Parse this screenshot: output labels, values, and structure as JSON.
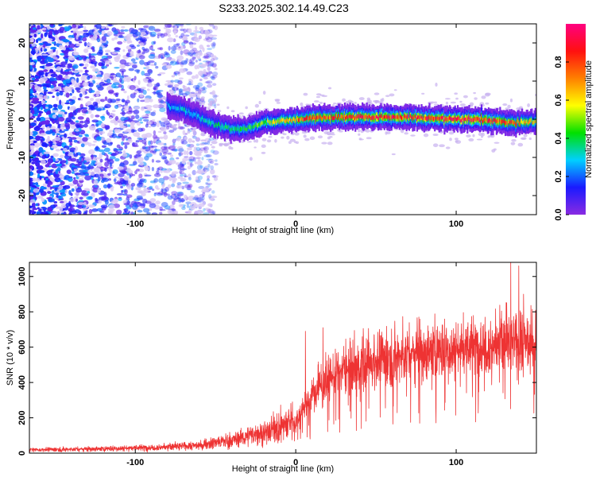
{
  "title": "S233.2025.302.14.49.C23",
  "chart_data": [
    {
      "type": "heatmap",
      "subtype": "spectrogram",
      "xlabel": "Height of straight line (km)",
      "ylabel": "Frequency (Hz)",
      "xlim": [
        -166,
        150
      ],
      "ylim": [
        -25,
        25
      ],
      "xticks": [
        "-100",
        "0",
        "100"
      ],
      "yticks": [
        "-20",
        "-10",
        "0",
        "10",
        "20"
      ],
      "colorbar": {
        "label": "Normalized spectral amplitude",
        "range": [
          0,
          1
        ],
        "ticks": [
          "0.0",
          "0.2",
          "0.4",
          "0.6",
          "0.8"
        ],
        "colormap": "rainbow (violet to magenta)",
        "stops": [
          "#8a2be2",
          "#1a1aff",
          "#00d0ff",
          "#00e000",
          "#ffff00",
          "#ff8000",
          "#ff1010",
          "#ff0080"
        ]
      },
      "signal_ridge": {
        "x": [
          -80,
          -70,
          -60,
          -50,
          -40,
          -30,
          -20,
          -10,
          0,
          10,
          20,
          40,
          60,
          80,
          100,
          115,
          125,
          140,
          150
        ],
        "frequency": [
          3.5,
          2.5,
          0.5,
          -1.5,
          -2.5,
          -2.5,
          -1.0,
          -0.5,
          0.0,
          0.3,
          0.5,
          0.6,
          0.6,
          0.3,
          0.0,
          0.0,
          -0.5,
          -1.0,
          -0.5
        ],
        "peak_amplitude": [
          0.25,
          0.3,
          0.3,
          0.35,
          0.4,
          0.4,
          0.5,
          0.6,
          0.7,
          0.8,
          0.8,
          0.85,
          0.85,
          0.85,
          0.9,
          0.9,
          0.8,
          0.7,
          0.6
        ]
      },
      "noise_region": {
        "x_range": [
          -166,
          -55
        ],
        "amplitude": [
          0.0,
          0.25
        ]
      }
    },
    {
      "type": "line",
      "xlabel": "Height of straight line (km)",
      "ylabel": "SNR (10 * v/v)",
      "xlim": [
        -166,
        150
      ],
      "ylim": [
        0,
        1080
      ],
      "xticks": [
        "-100",
        "0",
        "100"
      ],
      "yticks": [
        "0",
        "200",
        "400",
        "600",
        "800",
        "1000"
      ],
      "color": "#ee3333",
      "series": [
        {
          "x": [
            -166,
            -140,
            -120,
            -100,
            -80,
            -60,
            -50,
            -40,
            -30,
            -20,
            -10,
            0,
            5,
            10,
            15,
            20,
            25,
            30,
            40,
            50,
            60,
            70,
            80,
            90,
            100,
            110,
            120,
            130,
            140,
            150
          ],
          "y": [
            20,
            22,
            25,
            30,
            35,
            45,
            60,
            75,
            95,
            120,
            150,
            190,
            250,
            320,
            380,
            420,
            450,
            470,
            500,
            520,
            540,
            560,
            570,
            580,
            590,
            600,
            610,
            615,
            620,
            625
          ]
        }
      ],
      "spike_peaks": [
        {
          "x": 6,
          "y": 690
        },
        {
          "x": 17,
          "y": 710
        },
        {
          "x": 118,
          "y": 770
        },
        {
          "x": 134,
          "y": 1080
        },
        {
          "x": 139,
          "y": 1060
        },
        {
          "x": 142,
          "y": 900
        }
      ]
    }
  ]
}
